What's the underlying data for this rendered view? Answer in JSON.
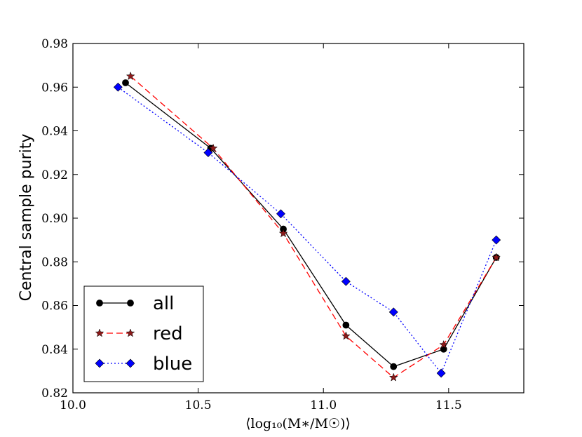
{
  "chart_data": {
    "type": "line",
    "title": "",
    "xlabel": "⟨log₁₀(M∗/M☉)⟩",
    "ylabel": "Central sample purity",
    "xlim": [
      10.0,
      11.8
    ],
    "ylim": [
      0.82,
      0.98
    ],
    "xticks": [
      10.0,
      10.5,
      11.0,
      11.5
    ],
    "xtick_labels": [
      "10.0",
      "10.5",
      "11.0",
      "11.5"
    ],
    "yticks": [
      0.82,
      0.84,
      0.86,
      0.88,
      0.9,
      0.92,
      0.94,
      0.96,
      0.98
    ],
    "ytick_labels": [
      "0.82",
      "0.84",
      "0.86",
      "0.88",
      "0.90",
      "0.92",
      "0.94",
      "0.96",
      "0.98"
    ],
    "grid": false,
    "legend_position": "lower-left",
    "series": [
      {
        "name": "all",
        "color": "#000000",
        "line_style": "solid",
        "marker": "circle",
        "marker_color": "#000000",
        "x": [
          10.21,
          10.55,
          10.84,
          11.09,
          11.28,
          11.48,
          11.69
        ],
        "y": [
          0.962,
          0.932,
          0.895,
          0.851,
          0.832,
          0.84,
          0.882
        ]
      },
      {
        "name": "red",
        "color": "#ff0000",
        "line_style": "dashed",
        "marker": "star",
        "marker_color": "#8b1a1a",
        "x": [
          10.23,
          10.56,
          10.84,
          11.09,
          11.28,
          11.48,
          11.69
        ],
        "y": [
          0.965,
          0.932,
          0.893,
          0.846,
          0.827,
          0.842,
          0.882
        ]
      },
      {
        "name": "blue",
        "color": "#0000ff",
        "line_style": "dotted",
        "marker": "diamond",
        "marker_color": "#0000ff",
        "x": [
          10.18,
          10.54,
          10.83,
          11.09,
          11.28,
          11.47,
          11.69
        ],
        "y": [
          0.96,
          0.93,
          0.902,
          0.871,
          0.857,
          0.829,
          0.89
        ]
      }
    ]
  }
}
